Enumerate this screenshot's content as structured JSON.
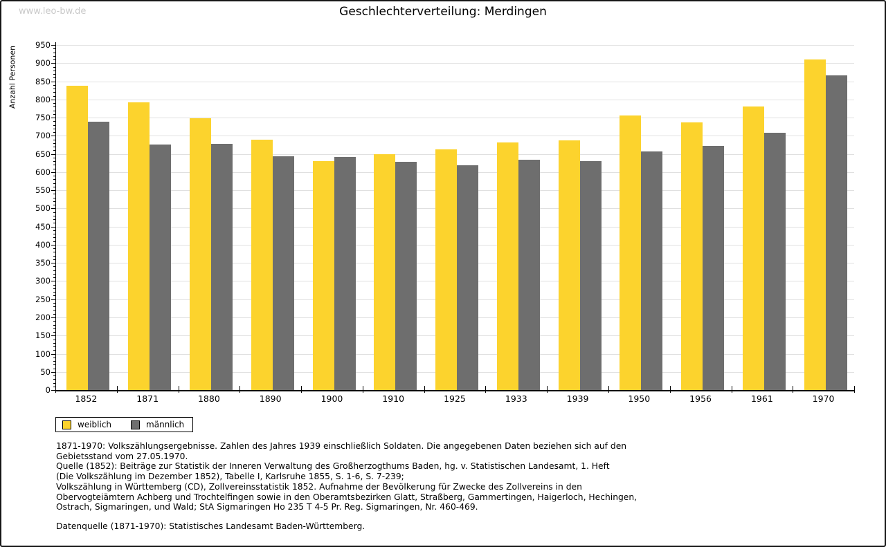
{
  "page": {
    "watermark": "www.leo-bw.de",
    "title": "Geschlechterverteilung: Merdingen"
  },
  "chart_data": {
    "type": "bar",
    "title": "Geschlechterverteilung: Merdingen",
    "xlabel": "",
    "ylabel": "Anzahl Personen",
    "ylim": [
      0,
      950
    ],
    "ytick_step": 50,
    "yminor_tick_step": 10,
    "grid": true,
    "legend_position": "bottom-left",
    "categories": [
      "1852",
      "1871",
      "1880",
      "1890",
      "1900",
      "1910",
      "1925",
      "1933",
      "1939",
      "1950",
      "1956",
      "1961",
      "1970"
    ],
    "series": [
      {
        "name": "weiblich",
        "color": "#fcd32d",
        "values": [
          838,
          793,
          748,
          690,
          630,
          649,
          662,
          682,
          687,
          756,
          736,
          780,
          910
        ]
      },
      {
        "name": "männlich",
        "color": "#6e6e6e",
        "values": [
          738,
          675,
          677,
          643,
          641,
          628,
          619,
          634,
          630,
          656,
          672,
          708,
          867
        ]
      }
    ]
  },
  "colors": {
    "weiblich": "#fcd32d",
    "maennlich": "#6e6e6e",
    "gridline": "#e0e0e0",
    "watermark": "#c9c9c9"
  },
  "footer": {
    "lines": [
      "1871-1970: Volkszählungsergebnisse. Zahlen des Jahres 1939 einschließlich Soldaten. Die angegebenen Daten beziehen sich auf den",
      "Gebietsstand vom 27.05.1970.",
      "Quelle (1852): Beiträge zur Statistik der Inneren Verwaltung des Großherzogthums Baden, hg. v. Statistischen Landesamt, 1. Heft",
      "(Die Volkszählung im Dezember 1852), Tabelle I, Karlsruhe 1855, S. 1-6, S. 7-239;",
      "Volkszählung in Württemberg (CD), Zollvereinsstatistik 1852. Aufnahme der Bevölkerung für Zwecke des Zollvereins in den",
      "Obervogteiämtern Achberg und Trochtelfingen sowie in den Oberamtsbezirken Glatt, Straßberg, Gammertingen, Haigerloch, Hechingen,",
      "Ostrach, Sigmaringen, und Wald; StA Sigmaringen Ho 235 T 4-5 Pr. Reg. Sigmaringen, Nr. 460-469."
    ],
    "datasource": "Datenquelle (1871-1970): Statistisches Landesamt Baden-Württemberg."
  }
}
